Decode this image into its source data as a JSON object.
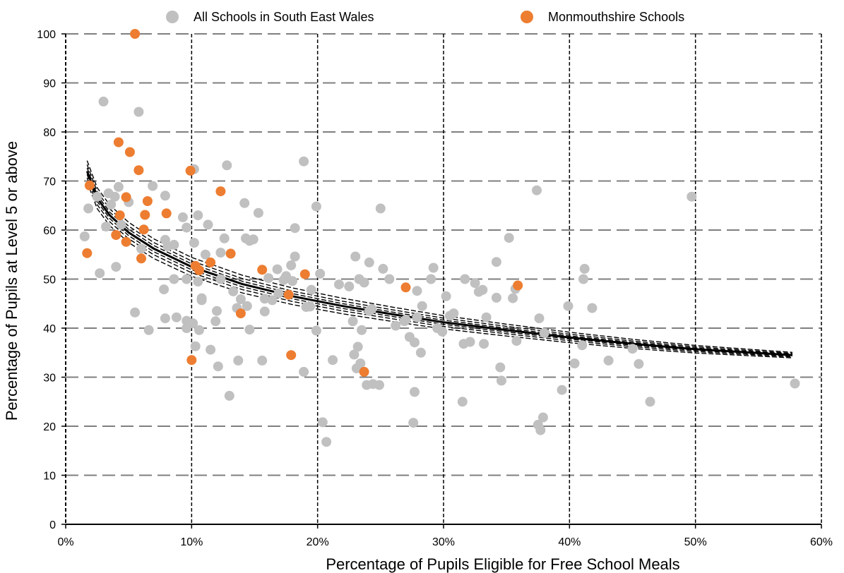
{
  "chart_data": {
    "type": "scatter",
    "title": "",
    "xlabel": "Percentage of Pupils Eligible for Free School Meals",
    "ylabel": "Percentage of Pupils at Level 5 or above",
    "xlim": [
      0,
      60
    ],
    "ylim": [
      0,
      100
    ],
    "x_ticks": [
      0,
      10,
      20,
      30,
      40,
      50,
      60
    ],
    "x_tick_labels": [
      "0%",
      "10%",
      "20%",
      "30%",
      "40%",
      "50%",
      "60%"
    ],
    "y_ticks": [
      0,
      10,
      20,
      30,
      40,
      50,
      60,
      70,
      80,
      90,
      100
    ],
    "y_tick_labels": [
      "0",
      "10",
      "20",
      "30",
      "40",
      "50",
      "60",
      "70",
      "80",
      "90",
      "100"
    ],
    "grid": {
      "horizontal": "dashed",
      "vertical": "dashed"
    },
    "legend_position": "top",
    "series": [
      {
        "name": "All Schools in South East Wales",
        "color": "#c0c0c0",
        "points": [
          [
            1.5,
            58.7
          ],
          [
            1.8,
            64.4
          ],
          [
            2.5,
            66.8
          ],
          [
            2.7,
            51.2
          ],
          [
            3.0,
            86.2
          ],
          [
            3.2,
            60.7
          ],
          [
            3.4,
            67.5
          ],
          [
            3.6,
            65.2
          ],
          [
            3.9,
            66.8
          ],
          [
            4.0,
            52.5
          ],
          [
            4.2,
            68.8
          ],
          [
            4.4,
            61.1
          ],
          [
            5.0,
            65.7
          ],
          [
            5.5,
            43.2
          ],
          [
            5.8,
            84.1
          ],
          [
            6.0,
            56.2
          ],
          [
            6.6,
            39.6
          ],
          [
            6.9,
            69.0
          ],
          [
            7.9,
            67.0
          ],
          [
            7.9,
            58.0
          ],
          [
            7.8,
            47.9
          ],
          [
            7.9,
            42.0
          ],
          [
            8.1,
            56.7
          ],
          [
            8.6,
            50.0
          ],
          [
            8.8,
            42.2
          ],
          [
            9.3,
            62.6
          ],
          [
            9.6,
            41.5
          ],
          [
            9.6,
            40.0
          ],
          [
            9.6,
            50.0
          ],
          [
            10.1,
            41.0
          ],
          [
            10.2,
            72.4
          ],
          [
            10.2,
            57.4
          ],
          [
            10.3,
            36.3
          ],
          [
            10.5,
            63.0
          ],
          [
            10.5,
            49.5
          ],
          [
            10.6,
            39.6
          ],
          [
            10.8,
            46.1
          ],
          [
            10.8,
            45.7
          ],
          [
            11.1,
            55.0
          ],
          [
            11.3,
            61.1
          ],
          [
            11.5,
            35.6
          ],
          [
            11.9,
            41.4
          ],
          [
            12.0,
            43.5
          ],
          [
            12.1,
            32.2
          ],
          [
            12.3,
            50.0
          ],
          [
            12.3,
            55.4
          ],
          [
            12.6,
            58.3
          ],
          [
            12.8,
            73.2
          ],
          [
            13.0,
            26.2
          ],
          [
            13.3,
            47.5
          ],
          [
            13.7,
            33.4
          ],
          [
            13.9,
            45.9
          ],
          [
            14.2,
            65.5
          ],
          [
            14.3,
            58.3
          ],
          [
            14.4,
            44.5
          ],
          [
            14.6,
            39.7
          ],
          [
            14.6,
            57.8
          ],
          [
            14.9,
            58.1
          ],
          [
            15.3,
            63.5
          ],
          [
            15.6,
            33.4
          ],
          [
            15.8,
            43.4
          ],
          [
            16.1,
            50.2
          ],
          [
            16.4,
            45.7
          ],
          [
            16.8,
            52.0
          ],
          [
            17.3,
            49.8
          ],
          [
            17.5,
            50.6
          ],
          [
            17.9,
            52.8
          ],
          [
            18.0,
            49.6
          ],
          [
            18.2,
            60.4
          ],
          [
            18.2,
            54.6
          ],
          [
            18.9,
            74.0
          ],
          [
            18.9,
            31.1
          ],
          [
            19.4,
            44.4
          ],
          [
            19.5,
            47.8
          ],
          [
            19.9,
            39.5
          ],
          [
            19.9,
            64.8
          ],
          [
            20.2,
            51.1
          ],
          [
            20.4,
            20.8
          ],
          [
            20.7,
            16.8
          ],
          [
            21.2,
            33.5
          ],
          [
            21.7,
            48.9
          ],
          [
            22.5,
            48.5
          ],
          [
            22.8,
            41.4
          ],
          [
            22.9,
            34.6
          ],
          [
            23.0,
            54.6
          ],
          [
            23.1,
            31.8
          ],
          [
            23.2,
            36.2
          ],
          [
            23.3,
            50.0
          ],
          [
            23.4,
            32.8
          ],
          [
            23.5,
            39.6
          ],
          [
            23.7,
            49.3
          ],
          [
            23.9,
            28.4
          ],
          [
            24.1,
            53.4
          ],
          [
            24.3,
            43.9
          ],
          [
            24.4,
            28.6
          ],
          [
            24.9,
            28.4
          ],
          [
            25.0,
            64.4
          ],
          [
            25.2,
            52.1
          ],
          [
            25.7,
            50.0
          ],
          [
            26.2,
            40.5
          ],
          [
            27.0,
            41.7
          ],
          [
            27.3,
            38.2
          ],
          [
            27.6,
            20.7
          ],
          [
            27.7,
            37.1
          ],
          [
            27.9,
            47.6
          ],
          [
            27.9,
            42.2
          ],
          [
            28.2,
            35.0
          ],
          [
            28.3,
            44.5
          ],
          [
            29.0,
            50.0
          ],
          [
            29.2,
            52.3
          ],
          [
            29.5,
            40.0
          ],
          [
            29.9,
            39.3
          ],
          [
            30.2,
            46.5
          ],
          [
            30.5,
            42.5
          ],
          [
            30.8,
            43.0
          ],
          [
            31.6,
            36.8
          ],
          [
            31.7,
            50.0
          ],
          [
            32.1,
            37.2
          ],
          [
            32.5,
            49.2
          ],
          [
            32.8,
            47.4
          ],
          [
            33.1,
            47.8
          ],
          [
            33.2,
            36.8
          ],
          [
            33.4,
            42.2
          ],
          [
            34.2,
            53.5
          ],
          [
            34.2,
            46.2
          ],
          [
            34.5,
            32.0
          ],
          [
            34.6,
            29.3
          ],
          [
            35.2,
            58.4
          ],
          [
            35.5,
            46.1
          ],
          [
            35.7,
            48.0
          ],
          [
            35.8,
            37.4
          ],
          [
            37.4,
            68.1
          ],
          [
            37.5,
            20.3
          ],
          [
            37.6,
            42.0
          ],
          [
            37.7,
            19.2
          ],
          [
            37.9,
            21.8
          ],
          [
            38.0,
            39.0
          ],
          [
            39.4,
            27.4
          ],
          [
            39.9,
            44.5
          ],
          [
            40.4,
            32.8
          ],
          [
            41.0,
            36.5
          ],
          [
            41.1,
            50.0
          ],
          [
            41.2,
            52.1
          ],
          [
            41.8,
            44.1
          ],
          [
            43.1,
            33.4
          ],
          [
            45.0,
            35.8
          ],
          [
            45.5,
            32.7
          ],
          [
            46.4,
            25.0
          ],
          [
            49.7,
            66.8
          ],
          [
            57.9,
            28.7
          ],
          [
            31.5,
            25.0
          ],
          [
            27.7,
            27.0
          ],
          [
            19.1,
            44.3
          ],
          [
            26.9,
            41.4
          ],
          [
            24.1,
            43.5
          ],
          [
            13.6,
            44.1
          ],
          [
            15.8,
            46.0
          ],
          [
            9.6,
            60.5
          ],
          [
            8.6,
            57.0
          ],
          [
            16.9,
            47.1
          ]
        ]
      },
      {
        "name": "Monmouthshire Schools",
        "color": "#ed7d31",
        "points": [
          [
            1.7,
            55.3
          ],
          [
            1.9,
            69.1
          ],
          [
            4.0,
            59.0
          ],
          [
            4.2,
            77.9
          ],
          [
            4.3,
            63.0
          ],
          [
            4.8,
            57.6
          ],
          [
            4.8,
            66.7
          ],
          [
            5.1,
            75.9
          ],
          [
            5.5,
            100
          ],
          [
            5.8,
            72.2
          ],
          [
            6.0,
            54.2
          ],
          [
            6.3,
            63.1
          ],
          [
            6.2,
            60.1
          ],
          [
            6.5,
            65.9
          ],
          [
            8.0,
            63.4
          ],
          [
            9.9,
            72.1
          ],
          [
            10.0,
            33.5
          ],
          [
            10.3,
            52.7
          ],
          [
            10.6,
            51.8
          ],
          [
            11.5,
            53.4
          ],
          [
            12.3,
            67.9
          ],
          [
            13.1,
            55.2
          ],
          [
            13.9,
            43.0
          ],
          [
            15.6,
            51.9
          ],
          [
            17.7,
            46.8
          ],
          [
            17.9,
            34.5
          ],
          [
            19.0,
            51.0
          ],
          [
            23.7,
            31.1
          ],
          [
            27.0,
            48.3
          ],
          [
            35.9,
            48.7
          ]
        ]
      }
    ],
    "trend_lines": [
      [
        1.7,
        72.0
      ],
      [
        2.5,
        66.5
      ],
      [
        3.5,
        63.0
      ],
      [
        5.0,
        59.5
      ],
      [
        7.0,
        56.2
      ],
      [
        10.0,
        52.5
      ],
      [
        14.0,
        49.0
      ],
      [
        18.0,
        46.5
      ],
      [
        22.0,
        44.5
      ],
      [
        26.0,
        42.8
      ],
      [
        30.0,
        41.2
      ],
      [
        35.0,
        39.6
      ],
      [
        40.0,
        38.1
      ],
      [
        45.0,
        36.8
      ],
      [
        50.0,
        35.7
      ],
      [
        57.7,
        34.5
      ]
    ]
  },
  "legend": {
    "items": [
      {
        "label": "All Schools in South East Wales",
        "color": "#c0c0c0"
      },
      {
        "label": "Monmouthshire Schools",
        "color": "#ed7d31"
      }
    ]
  }
}
